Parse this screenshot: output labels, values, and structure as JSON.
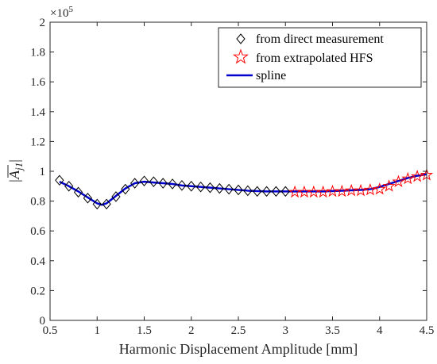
{
  "chart_data": {
    "type": "line",
    "xlabel": "Harmonic Displacement Amplitude [mm]",
    "ylabel_main": "|A",
    "ylabel_sub": "j1",
    "ylabel_end": "|",
    "exponent_base": "×10",
    "exponent_power": "5",
    "xlim": [
      0.5,
      4.5
    ],
    "ylim": [
      0,
      2
    ],
    "xticks": [
      "0.5",
      "1",
      "1.5",
      "2",
      "2.5",
      "3",
      "3.5",
      "4",
      "4.5"
    ],
    "yticks": [
      "0",
      "0.2",
      "0.4",
      "0.6",
      "0.8",
      "1",
      "1.2",
      "1.4",
      "1.6",
      "1.8",
      "2"
    ],
    "legend_position": "top-right",
    "series": [
      {
        "name": "from direct measurement",
        "marker": "diamond",
        "color": "#000000",
        "x": [
          0.6,
          0.7,
          0.8,
          0.9,
          1.0,
          1.1,
          1.2,
          1.3,
          1.4,
          1.5,
          1.6,
          1.7,
          1.8,
          1.9,
          2.0,
          2.1,
          2.2,
          2.3,
          2.4,
          2.5,
          2.6,
          2.7,
          2.8,
          2.9,
          3.0
        ],
        "y": [
          0.94,
          0.9,
          0.86,
          0.82,
          0.78,
          0.78,
          0.83,
          0.88,
          0.92,
          0.935,
          0.93,
          0.92,
          0.915,
          0.905,
          0.9,
          0.895,
          0.89,
          0.885,
          0.88,
          0.875,
          0.87,
          0.865,
          0.865,
          0.865,
          0.865
        ]
      },
      {
        "name": "from extrapolated HFS",
        "marker": "star",
        "color": "#ff0000",
        "x": [
          3.1,
          3.2,
          3.3,
          3.4,
          3.5,
          3.6,
          3.7,
          3.8,
          3.9,
          4.0,
          4.1,
          4.2,
          4.3,
          4.4,
          4.5
        ],
        "y": [
          0.86,
          0.86,
          0.86,
          0.86,
          0.865,
          0.865,
          0.87,
          0.87,
          0.875,
          0.88,
          0.9,
          0.93,
          0.95,
          0.965,
          0.975
        ]
      },
      {
        "name": "spline",
        "marker": "none",
        "color": "#0000cc",
        "x": [
          0.6,
          0.7,
          0.8,
          0.9,
          1.0,
          1.05,
          1.1,
          1.2,
          1.3,
          1.4,
          1.5,
          1.6,
          1.7,
          1.8,
          1.9,
          2.0,
          2.2,
          2.4,
          2.6,
          2.8,
          3.0,
          3.2,
          3.4,
          3.6,
          3.8,
          3.9,
          4.0,
          4.1,
          4.2,
          4.3,
          4.4,
          4.5
        ],
        "y": [
          0.93,
          0.9,
          0.865,
          0.825,
          0.785,
          0.775,
          0.785,
          0.835,
          0.885,
          0.92,
          0.93,
          0.925,
          0.92,
          0.915,
          0.905,
          0.9,
          0.89,
          0.88,
          0.87,
          0.865,
          0.865,
          0.865,
          0.865,
          0.87,
          0.875,
          0.88,
          0.895,
          0.915,
          0.935,
          0.955,
          0.97,
          0.98
        ]
      }
    ]
  }
}
